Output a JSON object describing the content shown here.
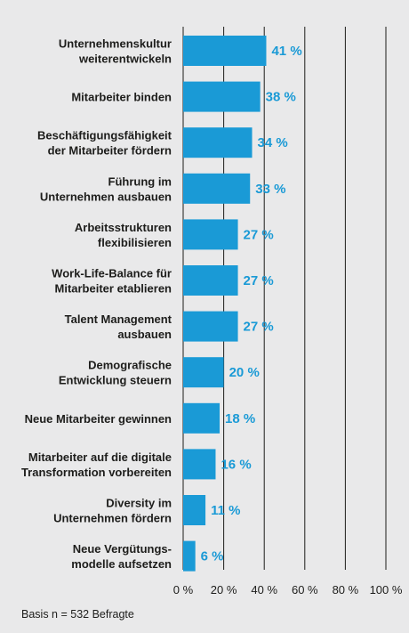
{
  "chart_data": {
    "type": "bar",
    "orientation": "horizontal",
    "categories": [
      [
        "Unternehmenskultur",
        "weiterentwickeln"
      ],
      [
        "Mitarbeiter binden"
      ],
      [
        "Beschäftigungsfähigkeit",
        "der Mitarbeiter fördern"
      ],
      [
        "Führung im",
        "Unternehmen ausbauen"
      ],
      [
        "Arbeitsstrukturen",
        "flexibilisieren"
      ],
      [
        "Work-Life-Balance für",
        "Mitarbeiter etablieren"
      ],
      [
        "Talent Management",
        "ausbauen"
      ],
      [
        "Demografische",
        "Entwicklung steuern"
      ],
      [
        "Neue Mitarbeiter gewinnen"
      ],
      [
        "Mitarbeiter auf die digitale",
        "Transformation vorbereiten"
      ],
      [
        "Diversity im",
        "Unternehmen fördern"
      ],
      [
        "Neue Vergütungs-",
        "modelle aufsetzen"
      ]
    ],
    "values": [
      41,
      38,
      34,
      33,
      27,
      27,
      27,
      20,
      18,
      16,
      11,
      6
    ],
    "value_labels": [
      "41 %",
      "38 %",
      "34 %",
      "33 %",
      "27 %",
      "27 %",
      "27 %",
      "20 %",
      "18 %",
      "16 %",
      "11 %",
      "6 %"
    ],
    "xlim": [
      0,
      100
    ],
    "x_ticks": [
      0,
      20,
      40,
      60,
      80,
      100
    ],
    "x_tick_labels": [
      "0 %",
      "20 %",
      "40 %",
      "60 %",
      "80 %",
      "100 %"
    ],
    "grid": true,
    "bar_color": "#1a9ad6",
    "value_label_color": "#1a9ad6",
    "grid_color": "#1d1d1b",
    "background_color": "#e9e9ea"
  },
  "footnote": "Basis n = 532 Befragte"
}
